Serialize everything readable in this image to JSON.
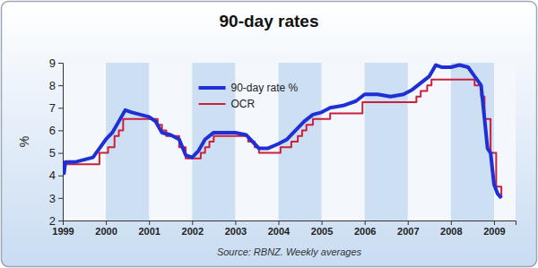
{
  "chart_data": {
    "type": "line",
    "title": "90-day rates",
    "y_label": "%",
    "annotations": [
      "Source: RBNZ. Weekly averages"
    ],
    "xlim": [
      1999,
      2009.5
    ],
    "xticks": [
      1999,
      2000,
      2001,
      2002,
      2003,
      2004,
      2005,
      2006,
      2007,
      2008,
      2009
    ],
    "ylim": [
      2,
      9
    ],
    "yticks": [
      2,
      3,
      4,
      5,
      6,
      7,
      8,
      9
    ],
    "grid": false,
    "legend": "top",
    "series": [
      {
        "name": "90-day rate %",
        "color": "#1f2fd6",
        "line_style": "solid",
        "x": [
          1999.0,
          1999.03,
          1999.06,
          1999.1,
          1999.3,
          1999.5,
          1999.7,
          1999.85,
          2000.0,
          2000.15,
          2000.3,
          2000.45,
          2000.6,
          2000.8,
          2001.0,
          2001.15,
          2001.3,
          2001.5,
          2001.7,
          2001.85,
          2002.0,
          2002.15,
          2002.3,
          2002.5,
          2002.7,
          2003.0,
          2003.25,
          2003.4,
          2003.55,
          2003.75,
          2004.0,
          2004.2,
          2004.4,
          2004.6,
          2004.8,
          2005.0,
          2005.2,
          2005.5,
          2005.8,
          2006.0,
          2006.3,
          2006.6,
          2006.9,
          2007.1,
          2007.3,
          2007.5,
          2007.65,
          2007.8,
          2008.0,
          2008.2,
          2008.4,
          2008.55,
          2008.7,
          2008.78,
          2008.85,
          2008.92,
          2009.0,
          2009.08,
          2009.17
        ],
        "values": [
          4.6,
          4.1,
          4.6,
          4.6,
          4.6,
          4.7,
          4.8,
          5.2,
          5.6,
          5.9,
          6.4,
          6.9,
          6.8,
          6.7,
          6.6,
          6.4,
          5.9,
          5.8,
          5.6,
          4.9,
          4.8,
          5.1,
          5.6,
          5.9,
          5.9,
          5.9,
          5.8,
          5.5,
          5.2,
          5.2,
          5.4,
          5.6,
          6.0,
          6.4,
          6.7,
          6.8,
          7.0,
          7.1,
          7.3,
          7.6,
          7.6,
          7.5,
          7.6,
          7.8,
          8.1,
          8.4,
          8.9,
          8.8,
          8.8,
          8.9,
          8.8,
          8.4,
          8.0,
          6.5,
          5.2,
          5.0,
          3.6,
          3.2,
          3.0
        ]
      },
      {
        "name": "OCR",
        "color": "#cc1f3a",
        "line_style": "step",
        "x": [
          1999.0,
          1999.85,
          2000.05,
          2000.2,
          2000.3,
          2000.4,
          2001.2,
          2001.3,
          2001.4,
          2001.7,
          2001.85,
          2002.2,
          2002.3,
          2002.4,
          2002.5,
          2003.3,
          2003.45,
          2003.55,
          2004.05,
          2004.3,
          2004.45,
          2004.55,
          2004.65,
          2004.8,
          2005.2,
          2005.95,
          2007.2,
          2007.3,
          2007.45,
          2007.55,
          2008.55,
          2008.7,
          2008.78,
          2008.92,
          2009.05,
          2009.17
        ],
        "values": [
          4.5,
          5.0,
          5.25,
          5.75,
          6.0,
          6.5,
          6.25,
          6.0,
          5.75,
          5.25,
          4.75,
          5.0,
          5.25,
          5.5,
          5.75,
          5.5,
          5.25,
          5.0,
          5.25,
          5.5,
          5.75,
          6.0,
          6.25,
          6.5,
          6.75,
          7.25,
          7.5,
          7.75,
          8.0,
          8.25,
          8.0,
          7.5,
          6.5,
          5.0,
          3.5,
          3.0
        ]
      }
    ]
  }
}
